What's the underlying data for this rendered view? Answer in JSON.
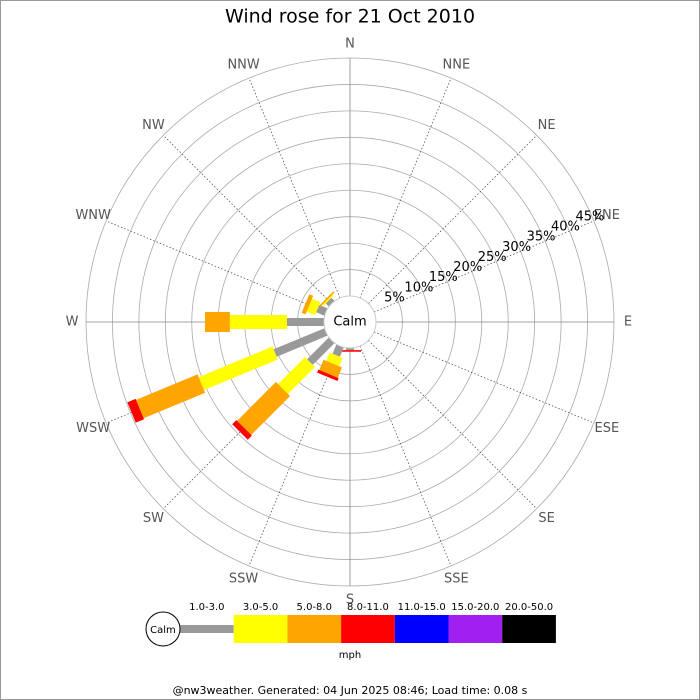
{
  "chart_data": {
    "type": "windrose",
    "title": "Wind rose for 21 Oct 2010",
    "categories": [
      "N",
      "NNE",
      "NE",
      "ENE",
      "E",
      "ESE",
      "SE",
      "SSE",
      "S",
      "SSW",
      "SW",
      "WSW",
      "W",
      "WNW",
      "NW",
      "NNW"
    ],
    "calm_label": "Calm",
    "unit_label": "mph",
    "footer": "@nw3weather. Generated: 04 Jun 2025 08:46; Load time: 0.08 s",
    "rlim": [
      0,
      45
    ],
    "rticks": [
      {
        "value": 5,
        "label": "5%"
      },
      {
        "value": 10,
        "label": "10%"
      },
      {
        "value": 15,
        "label": "15%"
      },
      {
        "value": 20,
        "label": "20%"
      },
      {
        "value": 25,
        "label": "25%"
      },
      {
        "value": 30,
        "label": "30%"
      },
      {
        "value": 35,
        "label": "35%"
      },
      {
        "value": 40,
        "label": "40%"
      },
      {
        "value": 45,
        "label": "45%"
      }
    ],
    "series": [
      {
        "name": "1.0-3.0",
        "color": "#999999",
        "values": [
          0,
          0,
          0,
          0,
          0,
          0,
          0,
          0,
          0.4,
          1.9,
          5.8,
          10.4,
          7.0,
          1.7,
          0.8,
          0
        ]
      },
      {
        "name": "3.0-5.0",
        "color": "#ffff00",
        "values": [
          0,
          0,
          0,
          0,
          0,
          0,
          0,
          0,
          0,
          1.7,
          7.2,
          15.1,
          10.8,
          1.7,
          0.3,
          0
        ]
      },
      {
        "name": "5.0-8.0",
        "color": "#ffa500",
        "values": [
          0,
          0,
          0,
          0,
          0,
          0,
          0,
          0,
          0,
          2.1,
          10.4,
          12.6,
          4.7,
          0.8,
          0.3,
          0
        ]
      },
      {
        "name": "8.0-11.0",
        "color": "#ff0000",
        "values": [
          0,
          0,
          0,
          0,
          0,
          0,
          0,
          0,
          0.3,
          0.6,
          1.1,
          1.7,
          0,
          0,
          0,
          0
        ]
      },
      {
        "name": "11.0-15.0",
        "color": "#0000ff",
        "values": [
          0,
          0,
          0,
          0,
          0,
          0,
          0,
          0,
          0,
          0,
          0,
          0,
          0,
          0,
          0,
          0
        ]
      },
      {
        "name": "15.0-20.0",
        "color": "#a020f0",
        "values": [
          0,
          0,
          0,
          0,
          0,
          0,
          0,
          0,
          0,
          0,
          0,
          0,
          0,
          0,
          0,
          0
        ]
      },
      {
        "name": "20.0-50.0",
        "color": "#000000",
        "values": [
          0,
          0,
          0,
          0,
          0,
          0,
          0,
          0,
          0,
          0,
          0,
          0,
          0,
          0,
          0,
          0
        ]
      }
    ]
  }
}
